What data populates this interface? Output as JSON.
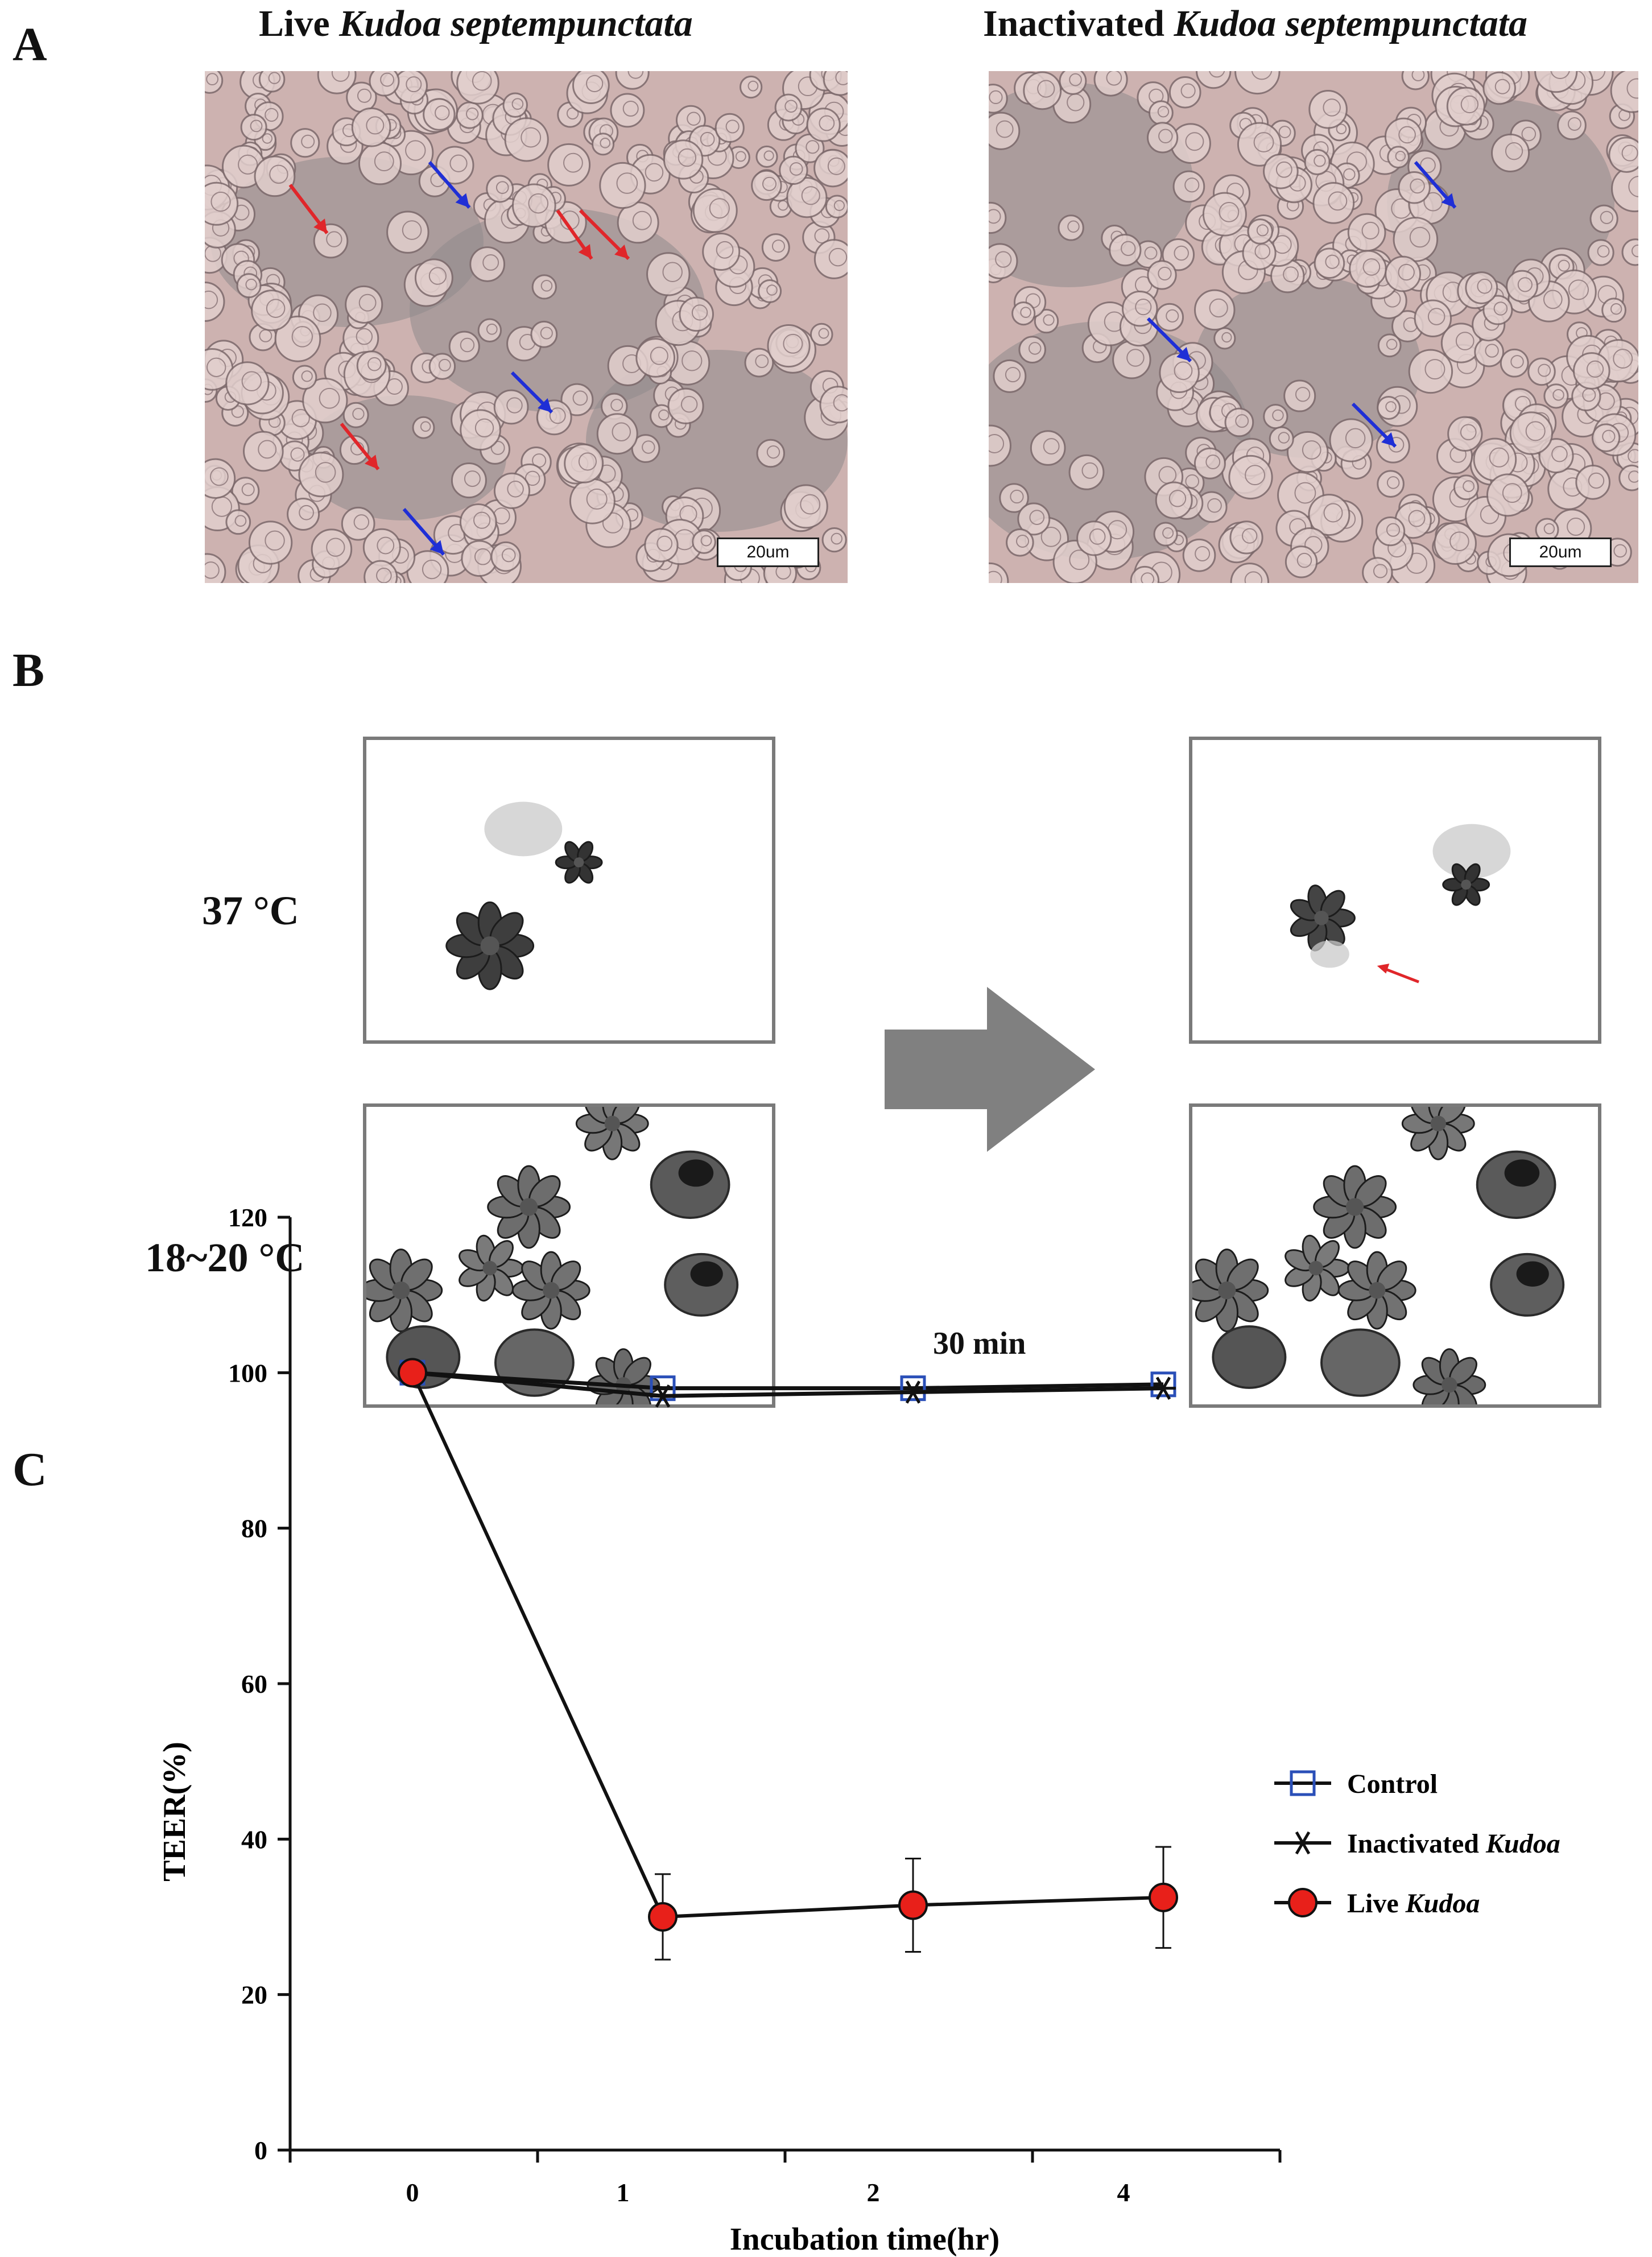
{
  "panels": {
    "A": {
      "letter": "A",
      "left_title_prefix": "Live ",
      "left_title_italic": "Kudoa septempunctata",
      "right_title_prefix": "Inactivated ",
      "right_title_italic": "Kudoa septempunctata",
      "scale_label": "20um",
      "arrow_colors": {
        "red": "#e0262a",
        "blue": "#1f2fd6"
      }
    },
    "B": {
      "letter": "B",
      "temp_top": "37 °C",
      "temp_bottom": "18~20 °C",
      "time_label": "30 min",
      "arrow_color": "#808080"
    },
    "C": {
      "letter": "C"
    }
  },
  "chart_data": {
    "type": "line",
    "xlabel": "Incubation time(hr)",
    "ylabel": "TEER(%)",
    "categories": [
      "0",
      "1",
      "2",
      "4"
    ],
    "ylim": [
      0,
      120
    ],
    "yticks": [
      0,
      20,
      40,
      60,
      80,
      100,
      120
    ],
    "legend_position": "right",
    "series": [
      {
        "name": "Control",
        "name_italic": "",
        "marker": "open-square",
        "color": "#2a4fb8",
        "x": [
          0,
          1.25,
          2.5,
          3.75
        ],
        "values": [
          100,
          98,
          98,
          98.5
        ]
      },
      {
        "name": "Inactivated ",
        "name_italic": "Kudoa",
        "marker": "star",
        "color": "#111111",
        "x": [
          0,
          1.25,
          2.5,
          3.75
        ],
        "values": [
          100,
          97,
          97.5,
          98
        ]
      },
      {
        "name": "Live ",
        "name_italic": "Kudoa",
        "marker": "filled-circle",
        "color": "#e8201a",
        "x": [
          0,
          1.25,
          2.5,
          3.75
        ],
        "values": [
          100,
          30,
          31.5,
          32.5
        ],
        "errors": [
          0,
          5.5,
          6,
          6.5
        ]
      }
    ],
    "tick_positions": [
      0,
      1,
      2,
      3,
      4,
      5
    ]
  }
}
